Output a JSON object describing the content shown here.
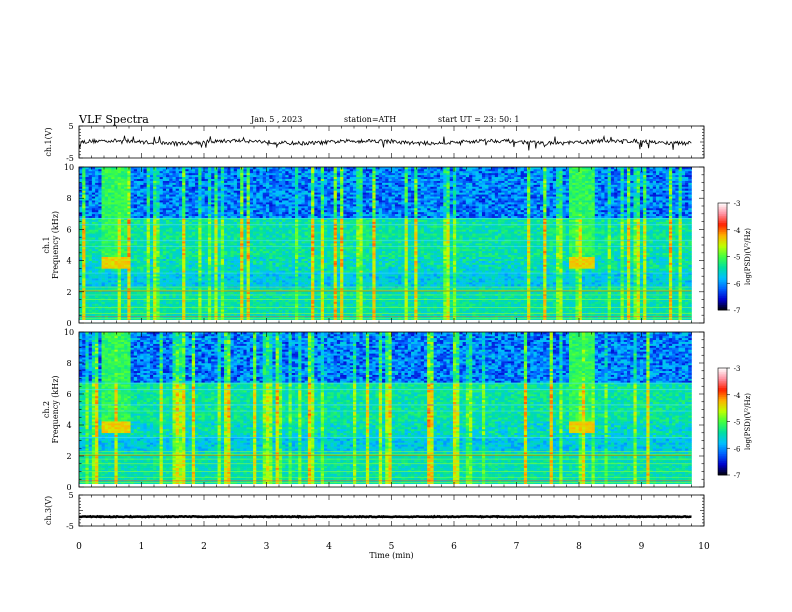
{
  "header": {
    "title": "VLF  Spectra",
    "date": "Jan.  5  ,  2023",
    "station": "station=ATH",
    "start": "start  UT  =    23: 50: 1"
  },
  "chart_data": [
    {
      "type": "line",
      "ylabel": "ch.1(V)",
      "ylim": [
        -5,
        5
      ],
      "y_tick_labels": [
        "5",
        "-5"
      ],
      "description_values": {
        "baseline": 0.0,
        "noise_amplitude": 1.2,
        "spike_amplitude": 2.5
      }
    },
    {
      "type": "heatmap",
      "ylabel_line1": "ch.1",
      "ylabel_line2": "Frequency  (kHz)",
      "ylim": [
        0,
        10
      ],
      "y_ticks": [
        0,
        2,
        4,
        6,
        8,
        10
      ],
      "x_range_min": [
        0,
        9.8
      ],
      "colorbar": {
        "label": "log(PSD)(V²/Hz)",
        "range": [
          -7,
          -3
        ],
        "ticks": [
          -7,
          -6,
          -5,
          -4,
          -3
        ],
        "colors": [
          "#000000",
          "#0000cc",
          "#0060ff",
          "#00c0ff",
          "#00e0a0",
          "#40ff40",
          "#c0ff00",
          "#ffb000",
          "#ff2000",
          "#ff90a0",
          "#ffffff"
        ]
      },
      "bursts": [
        {
          "t_min": [
            0.4,
            0.75
          ],
          "f_khz": [
            3.5,
            4.3
          ],
          "level": -4.7
        },
        {
          "t_min": [
            7.9,
            8.2
          ],
          "f_khz": [
            3.5,
            4.3
          ],
          "level": -4.7
        }
      ]
    },
    {
      "type": "heatmap",
      "ylabel_line1": "ch.2",
      "ylabel_line2": "Frequency  (kHz)",
      "ylim": [
        0,
        10
      ],
      "y_ticks": [
        0,
        2,
        4,
        6,
        8,
        10
      ],
      "x_range_min": [
        0,
        9.8
      ],
      "colorbar": {
        "label": "log(PSD)(V²/Hz)",
        "range": [
          -7,
          -3
        ],
        "ticks": [
          -7,
          -6,
          -5,
          -4,
          -3
        ]
      },
      "bursts": [
        {
          "t_min": [
            0.4,
            0.75
          ],
          "f_khz": [
            3.5,
            4.3
          ],
          "level": -4.6
        },
        {
          "t_min": [
            7.9,
            8.2
          ],
          "f_khz": [
            3.5,
            4.3
          ],
          "level": -4.6
        }
      ]
    },
    {
      "type": "line",
      "ylabel": "ch.3(V)",
      "ylim": [
        -5,
        5
      ],
      "y_tick_labels": [
        "5",
        "-5"
      ],
      "description_values": {
        "baseline": -2.0
      }
    }
  ],
  "x_axis": {
    "label": "Time  (min)",
    "xlim": [
      0,
      10
    ],
    "ticks": [
      0,
      1,
      2,
      3,
      4,
      5,
      6,
      7,
      8,
      9,
      10
    ]
  }
}
